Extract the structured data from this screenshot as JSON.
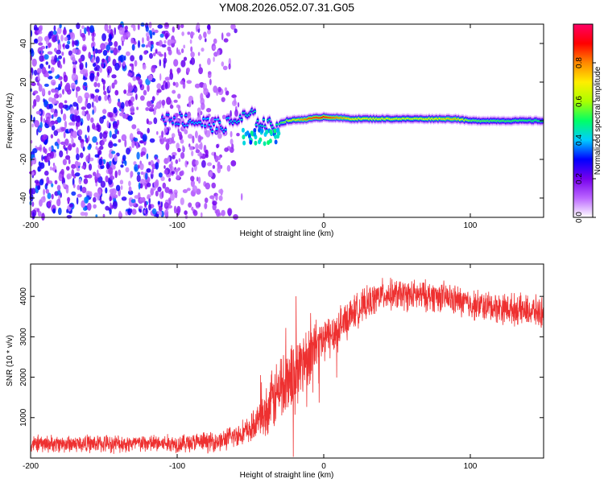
{
  "title": "YM08.2026.052.07.31.G05",
  "chart_data": [
    {
      "type": "heatmap",
      "name": "spectrogram",
      "xlabel": "Height of straight line (km)",
      "ylabel": "Frequency (Hz)",
      "xlim": [
        -200,
        150
      ],
      "ylim": [
        -50,
        50
      ],
      "xticks": [
        -200,
        -100,
        0,
        100
      ],
      "yticks": [
        -40,
        -20,
        0,
        20,
        40
      ],
      "colorbar": {
        "label": "Normalized spectral amplitude",
        "range": [
          0,
          1
        ],
        "ticks": [
          "0.0",
          "0.2",
          "0.4",
          "0.6",
          "0.8"
        ],
        "tick_values": [
          0.0,
          0.2,
          0.4,
          0.6,
          0.8
        ],
        "colors": [
          "#ffffff",
          "#bb66ff",
          "#7700ee",
          "#0000ff",
          "#00ccff",
          "#00ff66",
          "#aaff00",
          "#ffee00",
          "#ff8800",
          "#ff0000",
          "#ff0066"
        ]
      },
      "features": {
        "noise_region_x": [
          -200,
          -55
        ],
        "noise_density_fade_x": [
          -110,
          -55
        ],
        "signal_ridge": [
          {
            "x": -110,
            "f": 2,
            "amp": 0.35
          },
          {
            "x": -90,
            "f": 0,
            "amp": 0.4
          },
          {
            "x": -70,
            "f": -3,
            "amp": 0.4
          },
          {
            "x": -50,
            "f": 3,
            "amp": 0.45
          },
          {
            "x": -40,
            "f": -2,
            "amp": 0.45
          },
          {
            "x": -35,
            "f": -3,
            "amp": 0.45
          },
          {
            "x": -25,
            "f": 0,
            "amp": 0.6
          },
          {
            "x": -10,
            "f": 1,
            "amp": 0.85
          },
          {
            "x": 0,
            "f": 2,
            "amp": 0.9
          },
          {
            "x": 20,
            "f": 1,
            "amp": 0.7
          },
          {
            "x": 60,
            "f": 1,
            "amp": 0.65
          },
          {
            "x": 90,
            "f": 1,
            "amp": 0.75
          },
          {
            "x": 100,
            "f": 0,
            "amp": 0.55
          },
          {
            "x": 150,
            "f": 0,
            "amp": 0.5
          }
        ]
      }
    },
    {
      "type": "line",
      "name": "snr",
      "xlabel": "Height of straight line (km)",
      "ylabel": "SNR (10 * v/v)",
      "xlim": [
        -200,
        150
      ],
      "ylim": [
        0,
        4800
      ],
      "xticks": [
        -200,
        -100,
        0,
        100
      ],
      "yticks": [
        1000,
        2000,
        3000,
        4000
      ],
      "color": "#ee3030",
      "series": [
        {
          "name": "SNR",
          "trend": [
            {
              "x": -200,
              "mean": 350,
              "spread": 250
            },
            {
              "x": -100,
              "mean": 360,
              "spread": 270
            },
            {
              "x": -70,
              "mean": 420,
              "spread": 300
            },
            {
              "x": -50,
              "mean": 700,
              "spread": 400
            },
            {
              "x": -40,
              "mean": 1100,
              "spread": 700
            },
            {
              "x": -30,
              "mean": 1700,
              "spread": 1100
            },
            {
              "x": -20,
              "mean": 2100,
              "spread": 1100
            },
            {
              "x": -10,
              "mean": 2600,
              "spread": 900
            },
            {
              "x": 0,
              "mean": 2900,
              "spread": 700
            },
            {
              "x": 10,
              "mean": 3200,
              "spread": 600
            },
            {
              "x": 20,
              "mean": 3600,
              "spread": 500
            },
            {
              "x": 40,
              "mean": 4050,
              "spread": 450
            },
            {
              "x": 80,
              "mean": 4000,
              "spread": 450
            },
            {
              "x": 100,
              "mean": 3800,
              "spread": 450
            },
            {
              "x": 150,
              "mean": 3600,
              "spread": 450
            }
          ]
        }
      ]
    }
  ]
}
